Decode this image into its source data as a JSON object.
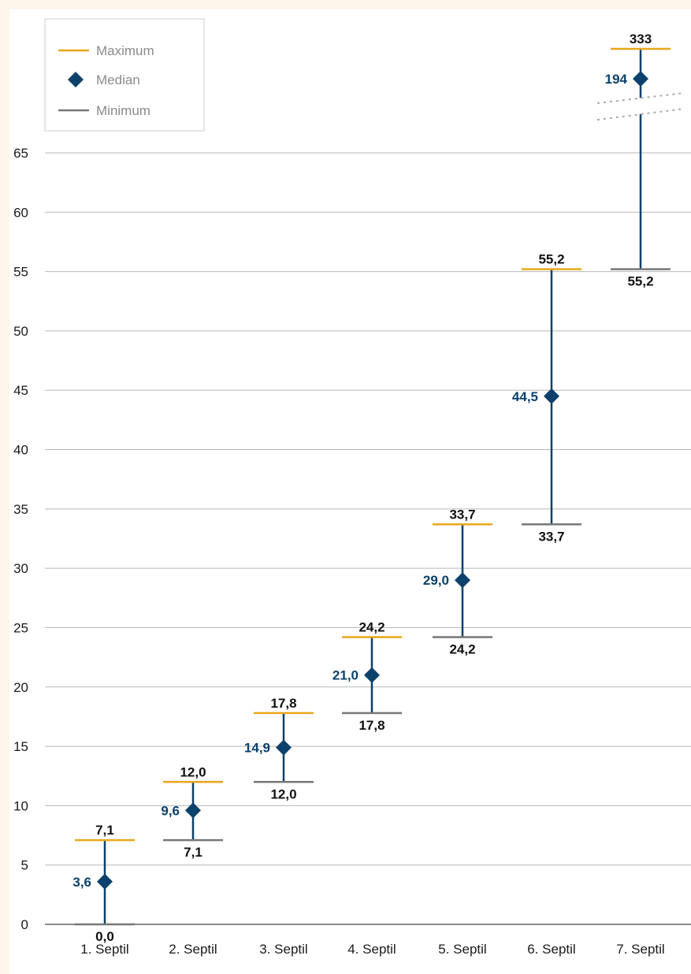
{
  "chart_data": {
    "type": "range",
    "title": "",
    "xlabel": "",
    "ylabel": "",
    "ylim": [
      0,
      65
    ],
    "y_ticks": [
      "0",
      "5",
      "10",
      "15",
      "20",
      "25",
      "30",
      "35",
      "40",
      "45",
      "50",
      "55",
      "60",
      "65"
    ],
    "grid": true,
    "axis_break": "7. Septil above 65",
    "legend": {
      "placement": "top-left",
      "items": [
        {
          "key": "max",
          "label": "Maximum"
        },
        {
          "key": "median",
          "label": "Median"
        },
        {
          "key": "min",
          "label": "Minimum"
        }
      ]
    },
    "categories": [
      "1. Septil",
      "2. Septil",
      "3. Septil",
      "4. Septil",
      "5. Septil",
      "6. Septil",
      "7. Septil"
    ],
    "series": [
      {
        "name": "Maximum",
        "values": [
          7.1,
          12.0,
          17.8,
          24.2,
          33.7,
          55.2,
          333
        ]
      },
      {
        "name": "Median",
        "values": [
          3.6,
          9.6,
          14.9,
          21.0,
          29.0,
          44.5,
          194
        ]
      },
      {
        "name": "Minimum",
        "values": [
          0.0,
          7.1,
          12.0,
          17.8,
          24.2,
          33.7,
          55.2
        ]
      }
    ],
    "labels": {
      "max": [
        "7,1",
        "12,0",
        "17,8",
        "24,2",
        "33,7",
        "55,2",
        "333"
      ],
      "median": [
        "3,6",
        "9,6",
        "14,9",
        "21,0",
        "29,0",
        "44,5",
        "194"
      ],
      "min": [
        "0,0",
        "7,1",
        "12,0",
        "17,8",
        "24,2",
        "33,7",
        "55,2"
      ]
    },
    "colors": {
      "max": "#eaa61a",
      "median": "#0b416c",
      "min": "#777777",
      "grid": "#b8b8b8",
      "axis": "#8c8c8c",
      "break": "#aaaaaa",
      "legend_border": "#cccccc"
    },
    "marker_icon": "diamond-icon"
  }
}
